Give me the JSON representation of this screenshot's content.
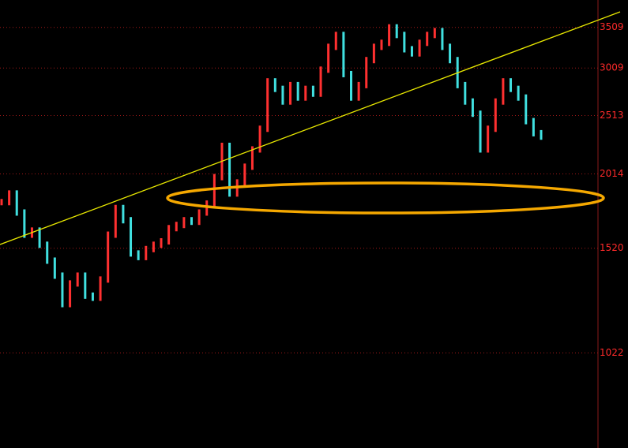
{
  "chart_data": {
    "type": "price",
    "values": [
      1810,
      1870,
      1740,
      1600,
      1625,
      1540,
      1450,
      1370,
      1230,
      1330,
      1370,
      1270,
      1260,
      1350,
      1600,
      1770,
      1690,
      1490,
      1470,
      1515,
      1540,
      1560,
      1640,
      1660,
      1690,
      1680,
      1740,
      1800,
      1990,
      2240,
      1870,
      1950,
      2070,
      2210,
      2390,
      2860,
      2780,
      2650,
      2820,
      2690,
      2780,
      2730,
      2990,
      3260,
      3410,
      2940,
      2690,
      2820,
      3100,
      3260,
      3310,
      3509,
      3410,
      3230,
      3180,
      3310,
      3410,
      3460,
      3260,
      3100,
      2820,
      2650,
      2530,
      2210,
      2390,
      2650,
      2860,
      2780,
      2690,
      2460,
      2350,
      2320
    ],
    "up_color": "#ff3030",
    "down_color": "#40e0e0",
    "ylim": [
      713,
      3893
    ],
    "yticks": [
      1022,
      1520,
      2014,
      2513,
      3009,
      3509
    ],
    "log_scale": true,
    "grid": true
  }
}
